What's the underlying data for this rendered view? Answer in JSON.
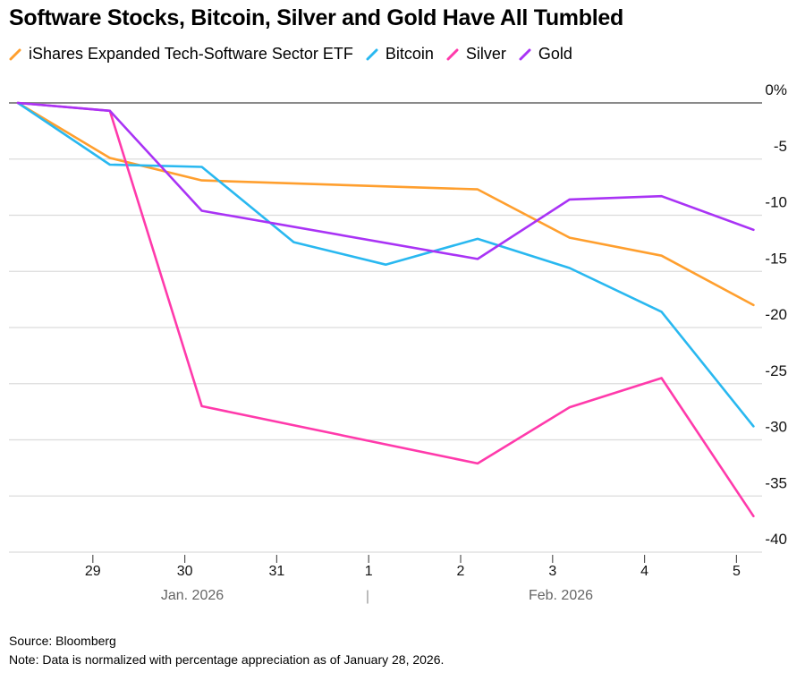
{
  "chart_data": {
    "type": "line",
    "title": "Software Stocks, Bitcoin, Silver and Gold Have All Tumbled",
    "x": [
      "Jan 28",
      "Jan 29",
      "Jan 30",
      "Jan 31",
      "Feb 1",
      "Feb 2",
      "Feb 3",
      "Feb 4",
      "Feb 5"
    ],
    "x_tick_labels": [
      "29",
      "30",
      "31",
      "1",
      "2",
      "3",
      "4",
      "5"
    ],
    "month_labels": [
      "Jan. 2026",
      "Feb. 2026"
    ],
    "month_separator": "|",
    "y_tick_labels": [
      "0%",
      "-5",
      "-10",
      "-15",
      "-20",
      "-25",
      "-30",
      "-35",
      "-40"
    ],
    "y_ticks": [
      0,
      -5,
      -10,
      -15,
      -20,
      -25,
      -30,
      -35,
      -40
    ],
    "ylim": [
      -40,
      0
    ],
    "xlabel": "",
    "ylabel": "",
    "grid": true,
    "legend_position": "top-left",
    "series": [
      {
        "name": "iShares Expanded Tech-Software Sector ETF",
        "color": "#FF9F2E",
        "values": [
          0,
          -4.9,
          -6.9,
          null,
          null,
          -7.7,
          -12.0,
          -13.6,
          -18.0
        ]
      },
      {
        "name": "Bitcoin",
        "color": "#29B8F0",
        "values": [
          0,
          -5.5,
          -5.7,
          -12.4,
          -14.4,
          -12.1,
          -14.7,
          -18.6,
          -28.8
        ]
      },
      {
        "name": "Silver",
        "color": "#FF3AAB",
        "values": [
          0,
          -0.7,
          -27.0,
          null,
          null,
          -32.1,
          -27.1,
          -24.5,
          -36.8
        ]
      },
      {
        "name": "Gold",
        "color": "#A933F5",
        "values": [
          0,
          -0.7,
          -9.6,
          null,
          null,
          -13.9,
          -8.6,
          -8.3,
          -11.3
        ]
      }
    ]
  },
  "footer": {
    "source": "Source: Bloomberg",
    "note": "Note: Data is normalized with percentage appreciation as of January 28, 2026."
  }
}
